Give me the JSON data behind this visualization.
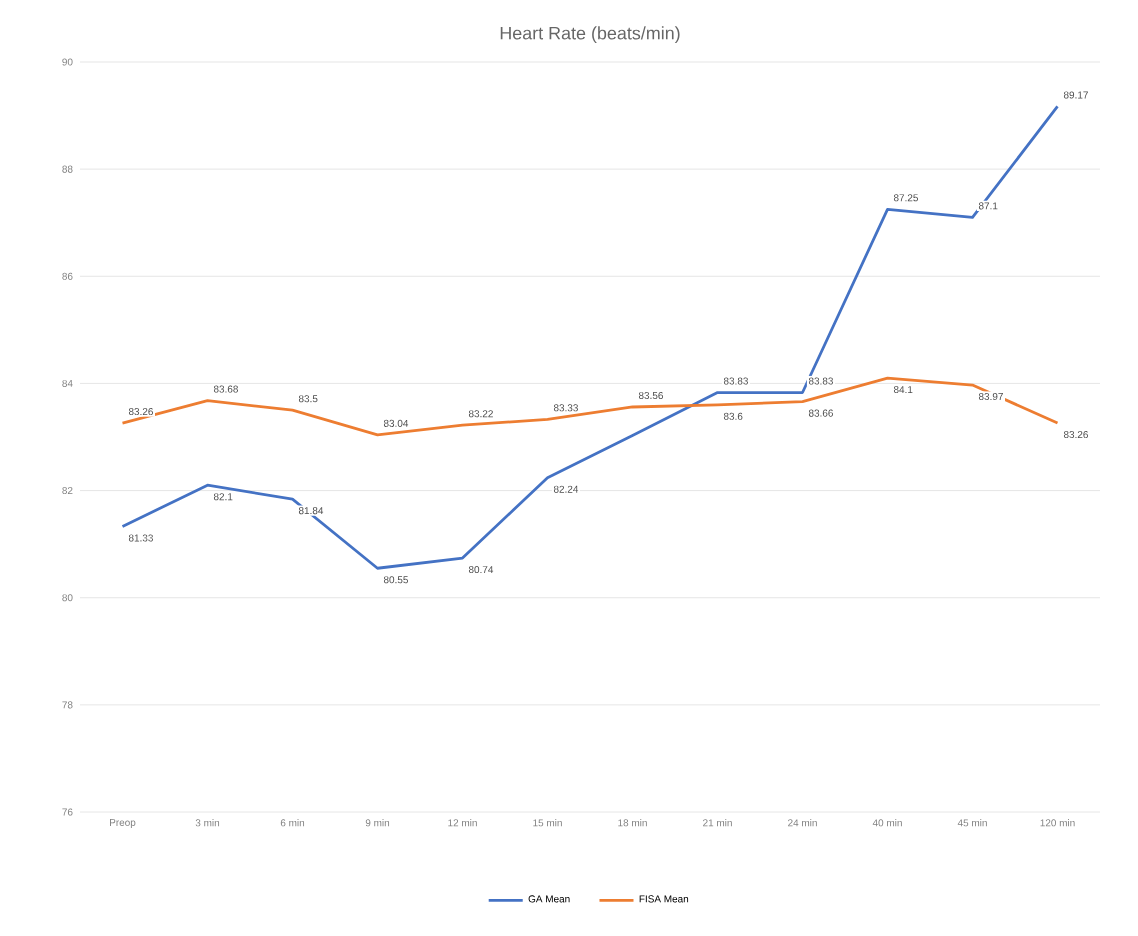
{
  "chart_data": {
    "type": "line",
    "title": "Heart Rate (beats/min)",
    "categories": [
      "Preop",
      "3 min",
      "6 min",
      "9 min",
      "12 min",
      "15 min",
      "18 min",
      "21 min",
      "24 min",
      "40 min",
      "45 min",
      "120 min"
    ],
    "series": [
      {
        "name": "GA Mean",
        "color": "#4472c4",
        "values": [
          81.33,
          82.1,
          81.84,
          80.55,
          80.74,
          82.24,
          83.03,
          83.83,
          83.83,
          87.25,
          87.1,
          89.17
        ],
        "value_labels": [
          "81.33",
          "82.1",
          "81.84",
          "80.55",
          "80.74",
          "82.24",
          null,
          "83.83",
          "83.83",
          "87.25",
          "87.1",
          "89.17"
        ]
      },
      {
        "name": "FISA Mean",
        "color": "#ed7d31",
        "values": [
          83.26,
          83.68,
          83.5,
          83.04,
          83.22,
          83.33,
          83.56,
          83.6,
          83.66,
          84.1,
          83.97,
          83.26
        ],
        "value_labels": [
          "83.26",
          "83.68",
          "83.5",
          "83.04",
          "83.22",
          "83.33",
          "83.56",
          "83.6",
          "83.66",
          "84.1",
          "83.97",
          "83.26"
        ]
      }
    ],
    "ylim": [
      76,
      90
    ],
    "yticks": [
      76,
      78,
      80,
      82,
      84,
      86,
      88,
      90
    ],
    "grid": "y",
    "legend": "bottom",
    "marker": "none",
    "line_style": "solid"
  }
}
